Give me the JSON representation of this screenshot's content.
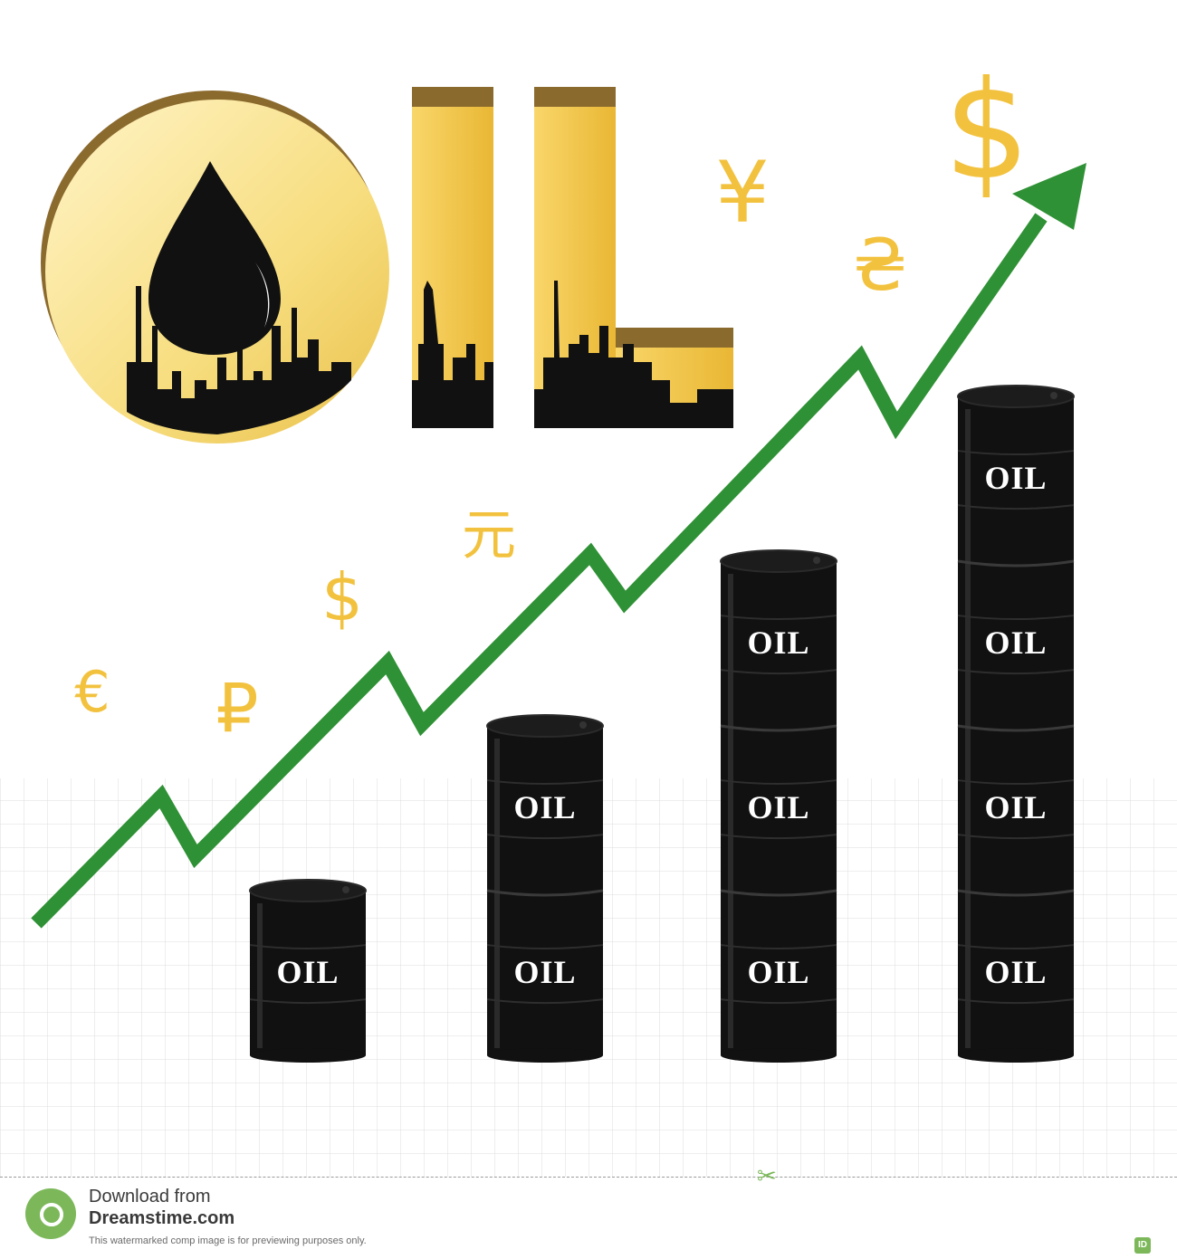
{
  "title_letters": [
    "I",
    "L"
  ],
  "barrel_label": "OIL",
  "barrel_stacks": [
    1,
    2,
    3,
    4
  ],
  "currency_symbols": {
    "euro": "€",
    "ruble": "₽",
    "dollar_small": "$",
    "yuan": "元",
    "yen": "¥",
    "hryvnia": "₴",
    "dollar_large": "$"
  },
  "colors": {
    "gold": "#f2c23f",
    "gold_light": "#fbe7a0",
    "brown": "#8b6a2e",
    "arrow_green": "#2f9135",
    "barrel_black": "#111111",
    "grid": "#d8d8d8"
  },
  "icons": [
    "oil-drop-icon",
    "refinery-silhouette-icon",
    "oil-barrel-icon",
    "up-arrow-icon"
  ],
  "footer": {
    "download_from": "Download from",
    "site": "Dreamstime.com",
    "note": "This watermarked comp image is for previewing purposes only.",
    "id_badge": "ID",
    "copyright_badge": "©"
  }
}
